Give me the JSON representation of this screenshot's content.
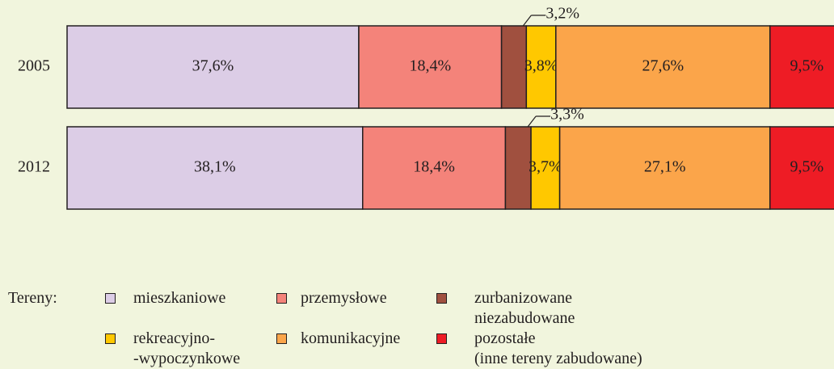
{
  "chart_data": {
    "type": "bar",
    "orientation": "horizontal",
    "stacked": true,
    "categories": [
      "2005",
      "2012"
    ],
    "xlim": [
      0,
      100
    ],
    "legend_title": "Tereny:",
    "series": [
      {
        "name": "mieszkaniowe",
        "color": "#dccde6",
        "values": [
          37.6,
          38.1
        ],
        "value_labels": [
          "37,6%",
          "38,1%"
        ]
      },
      {
        "name": "przemysłowe",
        "color": "#f4837a",
        "values": [
          18.4,
          18.4
        ],
        "value_labels": [
          "18,4%",
          "18,4%"
        ]
      },
      {
        "name": "zurbanizowane\nniezabudowane",
        "color": "#a0503f",
        "values": [
          3.2,
          3.3
        ],
        "value_labels": [
          "3,2%",
          "3,3%"
        ]
      },
      {
        "name": "rekreacyjno-\n-wypoczynkowe",
        "color": "#ffc800",
        "values": [
          3.8,
          3.7
        ],
        "value_labels": [
          "3,8%",
          "3,7%"
        ]
      },
      {
        "name": "komunikacyjne",
        "color": "#fba54a",
        "values": [
          27.6,
          27.1
        ],
        "value_labels": [
          "27,6%",
          "27,1%"
        ]
      },
      {
        "name": "pozostałe\n(inne tereny zabudowane)",
        "color": "#ee1c25",
        "values": [
          9.5,
          9.5
        ],
        "value_labels": [
          "9,5%",
          "9,5%"
        ]
      }
    ]
  }
}
